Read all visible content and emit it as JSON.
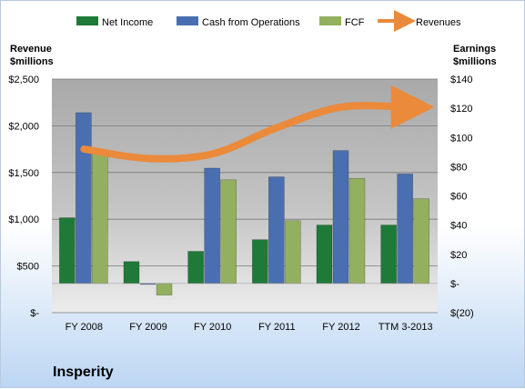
{
  "chart_data": {
    "type": "bar",
    "company": "Insperity",
    "categories": [
      "FY 2008",
      "FY 2009",
      "FY 2010",
      "FY 2011",
      "FY 2012",
      "TTM 3-2013"
    ],
    "series": [
      {
        "name": "Net Income",
        "axis": "right",
        "color": "#1f7a3a",
        "values": [
          45,
          15,
          22,
          30,
          40,
          40
        ]
      },
      {
        "name": "Cash from Operations",
        "axis": "right",
        "color": "#4a6fb0",
        "values": [
          117,
          0,
          79,
          73,
          91,
          75
        ]
      },
      {
        "name": "FCF",
        "axis": "right",
        "color": "#93b060",
        "values": [
          89,
          -8,
          71,
          43,
          72,
          58
        ]
      },
      {
        "name": "Revenues",
        "axis": "left",
        "type": "line",
        "color": "#ea8a3a",
        "values": [
          1750,
          1650,
          1700,
          1980,
          2200,
          2200
        ]
      }
    ],
    "left_axis": {
      "title": [
        "Revenue",
        "$millions"
      ],
      "ylim": [
        0,
        2500
      ],
      "ticks": [
        "$-",
        "$500",
        "$1,000",
        "$1,500",
        "$2,000",
        "$2,500"
      ]
    },
    "right_axis": {
      "title": [
        "Earnings",
        "$millions"
      ],
      "ylim": [
        -20,
        140
      ],
      "ticks": [
        "$(20)",
        "$-",
        "$20",
        "$40",
        "$60",
        "$80",
        "$100",
        "$120",
        "$140"
      ]
    },
    "grid": true,
    "legend": "top"
  }
}
